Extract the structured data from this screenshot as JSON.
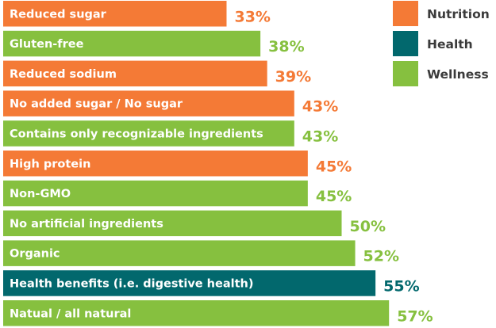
{
  "chart_data": {
    "type": "bar",
    "orientation": "horizontal",
    "categories": [
      "Reduced sugar",
      "Gluten-free",
      "Reduced sodium",
      "No added sugar / No sugar",
      "Contains only recognizable ingredients",
      "High protein",
      "Non-GMO",
      "No artificial ingredients",
      "Organic",
      "Health benefits (i.e. digestive health)",
      "Natual / all natural"
    ],
    "values": [
      33,
      38,
      39,
      43,
      43,
      45,
      45,
      50,
      52,
      55,
      57
    ],
    "value_labels": [
      "33%",
      "38%",
      "39%",
      "43%",
      "43%",
      "45%",
      "45%",
      "50%",
      "52%",
      "55%",
      "57%"
    ],
    "groups": [
      "Nutrition",
      "Wellness",
      "Nutrition",
      "Nutrition",
      "Wellness",
      "Nutrition",
      "Wellness",
      "Wellness",
      "Wellness",
      "Health",
      "Wellness"
    ],
    "legend": [
      {
        "name": "Nutrition",
        "color": "#F47A36"
      },
      {
        "name": "Health",
        "color": "#02686D"
      },
      {
        "name": "Wellness",
        "color": "#86C03F"
      }
    ],
    "legend_position": "top-right",
    "grid": false,
    "xlim": [
      0,
      57
    ]
  }
}
